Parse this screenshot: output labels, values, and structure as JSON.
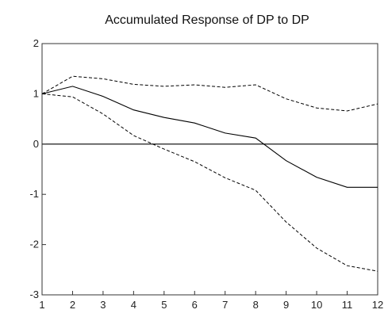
{
  "chart_data": {
    "type": "line",
    "title": "Accumulated Response of DP to DP",
    "xlabel": "",
    "ylabel": "",
    "x": [
      1,
      2,
      3,
      4,
      5,
      6,
      7,
      8,
      9,
      10,
      11,
      12
    ],
    "xlim": [
      1,
      12
    ],
    "ylim": [
      -3,
      2
    ],
    "yticks": [
      -3,
      -2,
      -1,
      0,
      1,
      2
    ],
    "grid": false,
    "legend": "none",
    "zero_line": true,
    "series": [
      {
        "style": "solid",
        "color": "#000000",
        "values": [
          1.0,
          1.15,
          0.95,
          0.68,
          0.53,
          0.42,
          0.22,
          0.12,
          -0.33,
          -0.66,
          -0.86,
          -0.86
        ]
      },
      {
        "style": "dashed",
        "color": "#000000",
        "values": [
          1.0,
          1.35,
          1.3,
          1.19,
          1.15,
          1.18,
          1.13,
          1.18,
          0.9,
          0.72,
          0.66,
          0.8
        ]
      },
      {
        "style": "dashed",
        "color": "#000000",
        "values": [
          1.0,
          0.94,
          0.6,
          0.17,
          -0.1,
          -0.35,
          -0.67,
          -0.92,
          -1.55,
          -2.07,
          -2.42,
          -2.53
        ]
      }
    ]
  }
}
